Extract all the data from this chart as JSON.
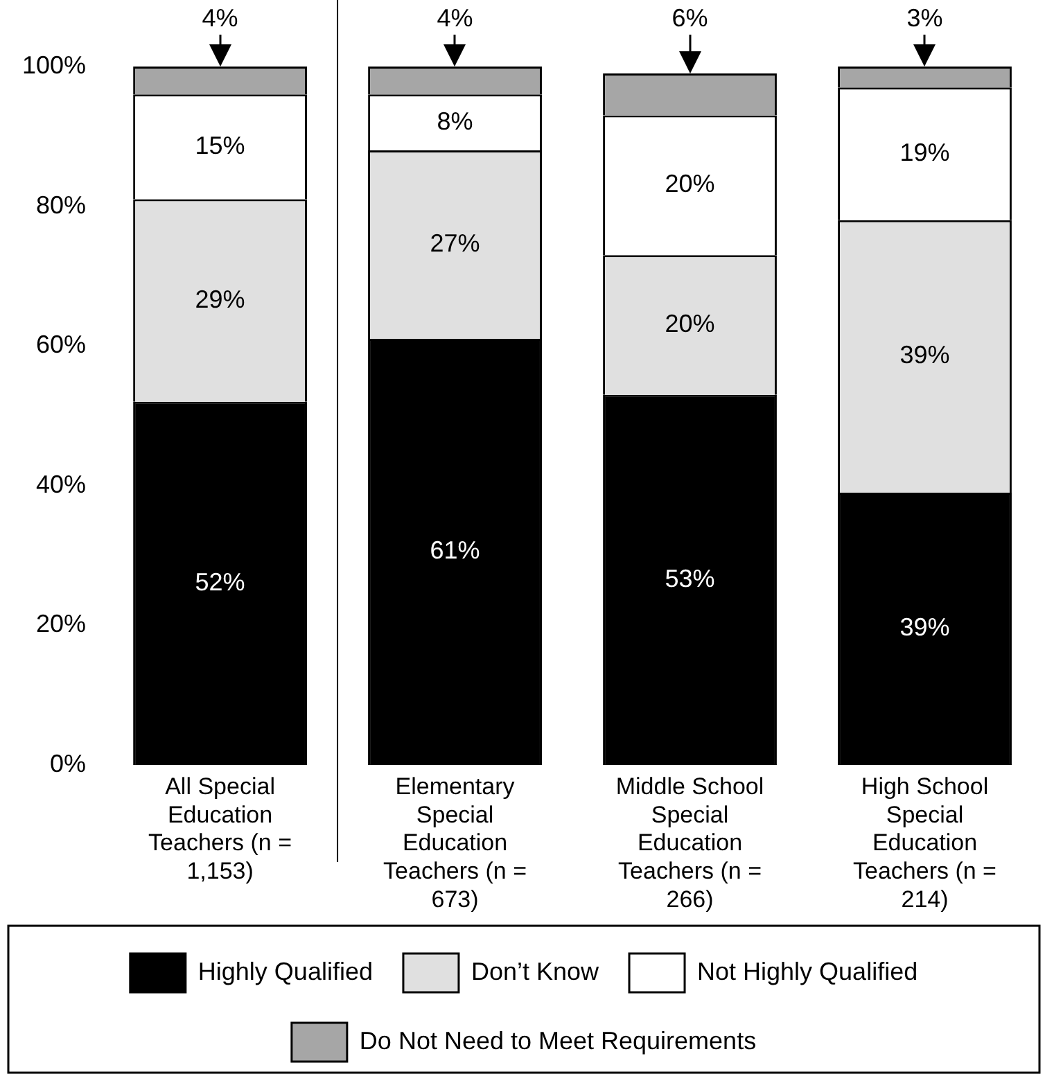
{
  "chart_data": {
    "type": "bar",
    "stacked": true,
    "categories": [
      "All Special Education Teachers (n = 1,153)",
      "Elementary Special Education Teachers (n = 673)",
      "Middle School Special Education Teachers (n = 266)",
      "High School Special Education Teachers (n = 214)"
    ],
    "series": [
      {
        "name": "Highly Qualified",
        "color": "#000000",
        "values": [
          52,
          61,
          53,
          39
        ],
        "value_labels": [
          "52%",
          "61%",
          "53%",
          "39%"
        ]
      },
      {
        "name": "Don’t Know",
        "color": "#e0e0e0",
        "values": [
          29,
          27,
          20,
          39
        ],
        "value_labels": [
          "29%",
          "27%",
          "20%",
          "39%"
        ]
      },
      {
        "name": "Not Highly Qualified",
        "color": "#ffffff",
        "values": [
          15,
          8,
          20,
          19
        ],
        "value_labels": [
          "15%",
          "8%",
          "20%",
          "19%"
        ]
      },
      {
        "name": "Do Not Need to Meet Requirements",
        "color": "#a6a6a6",
        "values": [
          4,
          4,
          6,
          3
        ],
        "value_labels": [
          "4%",
          "4%",
          "6%",
          "3%"
        ]
      }
    ],
    "ylim": [
      0,
      100
    ],
    "yticks": [
      {
        "value": 0,
        "label": "0%"
      },
      {
        "value": 20,
        "label": "20%"
      },
      {
        "value": 40,
        "label": "40%"
      },
      {
        "value": 60,
        "label": "60%"
      },
      {
        "value": 80,
        "label": "80%"
      },
      {
        "value": 100,
        "label": "100%"
      }
    ],
    "grid": false,
    "legend": "bottom"
  }
}
